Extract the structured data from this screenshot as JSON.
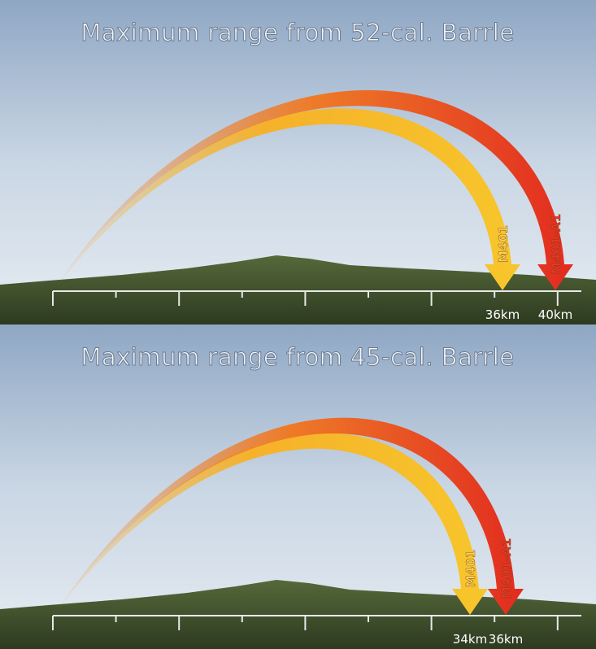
{
  "panels": [
    {
      "title": "Maximum range from 52-cal. Barrle",
      "arrows": [
        {
          "name": "M401",
          "range_label": "36km"
        },
        {
          "name": "M401-A1",
          "range_label": "40km"
        }
      ]
    },
    {
      "title": "Maximum range from 45-cal. Barrle",
      "arrows": [
        {
          "name": "M401",
          "range_label": "34km"
        },
        {
          "name": "M401-A1",
          "range_label": "36km"
        }
      ]
    }
  ]
}
